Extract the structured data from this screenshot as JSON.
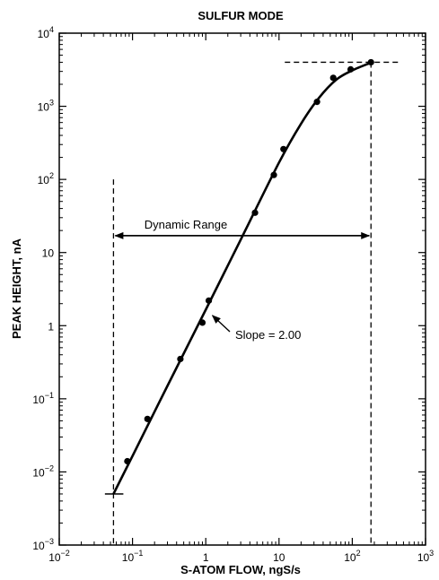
{
  "chart_data": {
    "type": "scatter",
    "title": "SULFUR MODE",
    "xlabel": "S-ATOM FLOW, ngS/s",
    "ylabel": "PEAK HEIGHT, nA",
    "xscale": "log",
    "yscale": "log",
    "xlim": [
      0.01,
      1000
    ],
    "ylim": [
      0.001,
      10000
    ],
    "grid": false,
    "x_ticks": [
      {
        "value": 0.01,
        "base": "10",
        "exp": "−2"
      },
      {
        "value": 0.1,
        "base": "10",
        "exp": "−1"
      },
      {
        "value": 1,
        "base": "1",
        "exp": ""
      },
      {
        "value": 10,
        "base": "10",
        "exp": ""
      },
      {
        "value": 100,
        "base": "10",
        "exp": "2"
      },
      {
        "value": 1000,
        "base": "10",
        "exp": "3"
      }
    ],
    "y_ticks": [
      {
        "value": 0.001,
        "base": "10",
        "exp": "−3"
      },
      {
        "value": 0.01,
        "base": "10",
        "exp": "−2"
      },
      {
        "value": 0.1,
        "base": "10",
        "exp": "−1"
      },
      {
        "value": 1,
        "base": "1",
        "exp": ""
      },
      {
        "value": 10,
        "base": "10",
        "exp": ""
      },
      {
        "value": 100,
        "base": "10",
        "exp": "2"
      },
      {
        "value": 1000,
        "base": "10",
        "exp": "3"
      },
      {
        "value": 10000,
        "base": "10",
        "exp": "4"
      }
    ],
    "series": [
      {
        "points": [
          [
            0.085,
            0.014
          ],
          [
            0.16,
            0.053
          ],
          [
            0.45,
            0.35
          ],
          [
            0.9,
            1.1
          ],
          [
            1.1,
            2.2
          ],
          [
            4.7,
            35
          ],
          [
            8.5,
            115
          ],
          [
            11.5,
            260
          ],
          [
            33,
            1150
          ],
          [
            55,
            2450
          ],
          [
            95,
            3200
          ],
          [
            180,
            4000
          ]
        ]
      }
    ],
    "fit_curve": [
      [
        0.055,
        0.005
      ],
      [
        0.1,
        0.0165
      ],
      [
        0.3,
        0.15
      ],
      [
        1,
        1.65
      ],
      [
        3,
        15
      ],
      [
        10,
        170
      ],
      [
        20,
        580
      ],
      [
        35,
        1300
      ],
      [
        60,
        2300
      ],
      [
        100,
        3100
      ],
      [
        180,
        3950
      ]
    ],
    "annotations": {
      "dynamic_range": {
        "text": "Dynamic Range",
        "x_from": 0.055,
        "x_to": 180,
        "y": 17
      },
      "slope": {
        "text": "Slope = 2.00",
        "arrow_to": [
          1.1,
          1.5
        ]
      }
    },
    "reference_lines": {
      "lower_limit_x": 0.055,
      "lower_limit_y": 0.005,
      "upper_limit_x": 180,
      "upper_limit_y": 4000
    }
  }
}
